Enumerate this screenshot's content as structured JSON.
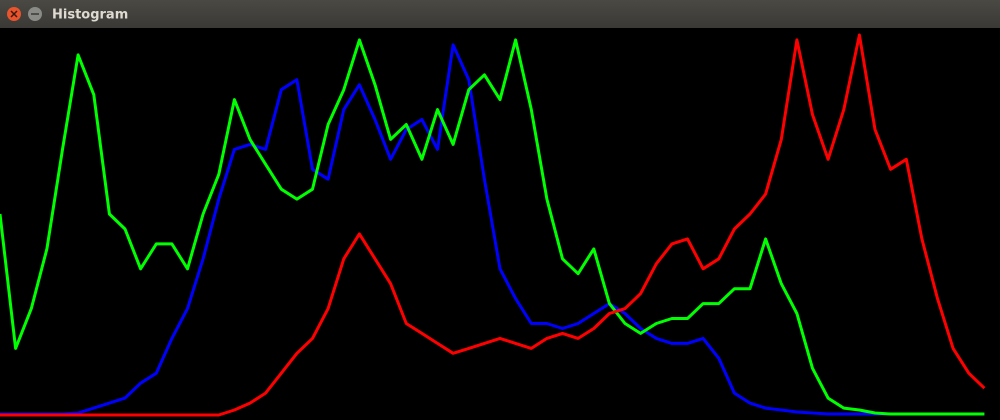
{
  "window_title": "Histogram",
  "chart_data": {
    "type": "line",
    "x": [
      0,
      4,
      8,
      12,
      16,
      20,
      24,
      28,
      32,
      36,
      40,
      44,
      48,
      52,
      56,
      60,
      64,
      68,
      72,
      76,
      80,
      84,
      88,
      92,
      96,
      100,
      104,
      108,
      112,
      116,
      120,
      124,
      128,
      132,
      136,
      140,
      144,
      148,
      152,
      156,
      160,
      164,
      168,
      172,
      176,
      180,
      184,
      188,
      192,
      196,
      200,
      204,
      208,
      212,
      216,
      220,
      224,
      228,
      232,
      236,
      240,
      244,
      248,
      252
    ],
    "xlim": [
      0,
      256
    ],
    "ylim": [
      0,
      392
    ],
    "series": [
      {
        "name": "blue",
        "color": "#0000ff",
        "values": [
          4,
          4,
          4,
          4,
          4,
          5,
          10,
          15,
          20,
          35,
          45,
          80,
          110,
          160,
          220,
          270,
          275,
          270,
          330,
          340,
          250,
          240,
          310,
          335,
          300,
          260,
          290,
          300,
          270,
          375,
          340,
          240,
          150,
          120,
          95,
          95,
          90,
          95,
          105,
          115,
          105,
          90,
          80,
          75,
          75,
          80,
          60,
          25,
          15,
          10,
          8,
          6,
          5,
          4,
          4,
          4,
          4,
          4,
          4,
          4,
          4,
          4,
          4,
          4
        ]
      },
      {
        "name": "green",
        "color": "#00ff00",
        "values": [
          205,
          70,
          110,
          170,
          270,
          365,
          325,
          205,
          190,
          150,
          175,
          175,
          150,
          205,
          245,
          320,
          280,
          255,
          230,
          220,
          230,
          295,
          330,
          380,
          335,
          280,
          295,
          260,
          310,
          275,
          330,
          345,
          320,
          380,
          310,
          220,
          160,
          145,
          170,
          115,
          95,
          85,
          95,
          100,
          100,
          115,
          115,
          130,
          130,
          180,
          135,
          105,
          50,
          20,
          10,
          8,
          5,
          4,
          4,
          4,
          4,
          4,
          4,
          4
        ]
      },
      {
        "name": "red",
        "color": "#ff0000",
        "values": [
          3,
          3,
          3,
          3,
          3,
          3,
          3,
          3,
          3,
          3,
          3,
          3,
          3,
          3,
          3,
          8,
          15,
          25,
          45,
          65,
          80,
          110,
          160,
          185,
          160,
          135,
          95,
          85,
          75,
          65,
          70,
          75,
          80,
          75,
          70,
          80,
          85,
          80,
          90,
          105,
          110,
          125,
          155,
          175,
          180,
          150,
          160,
          190,
          205,
          225,
          280,
          380,
          305,
          260,
          310,
          385,
          290,
          250,
          260,
          180,
          120,
          70,
          45,
          30
        ]
      }
    ]
  }
}
